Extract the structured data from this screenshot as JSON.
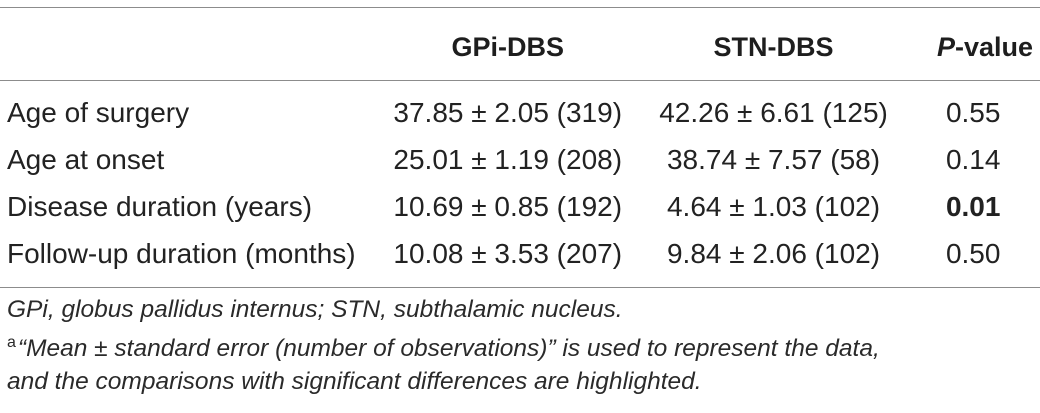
{
  "table": {
    "columns": [
      "",
      "GPi-DBS",
      "STN-DBS",
      "P-value"
    ],
    "pvalue_header": {
      "italic_part": "P",
      "rest": "-value"
    },
    "rows": [
      {
        "label": "Age of surgery",
        "gpi": "37.85 ± 2.05 (319)",
        "stn": "42.26 ± 6.61 (125)",
        "p": "0.55",
        "significant": false
      },
      {
        "label": "Age at onset",
        "gpi": "25.01 ± 1.19 (208)",
        "stn": "38.74 ± 7.57 (58)",
        "p": "0.14",
        "significant": false
      },
      {
        "label": "Disease duration (years)",
        "gpi": "10.69 ± 0.85 (192)",
        "stn": "4.64 ± 1.03 (102)",
        "p": "0.01",
        "significant": true
      },
      {
        "label": "Follow-up duration (months)",
        "gpi": "10.08 ± 3.53 (207)",
        "stn": "9.84 ± 2.06 (102)",
        "p": "0.50",
        "significant": false
      }
    ]
  },
  "footnotes": {
    "abbreviations": "GPi, globus pallidus internus; STN, subthalamic nucleus.",
    "marker": "a",
    "note_line1": "“Mean ± standard error (number of observations)” is used to represent the data,",
    "note_line2": "and the comparisons with significant differences are highlighted."
  }
}
